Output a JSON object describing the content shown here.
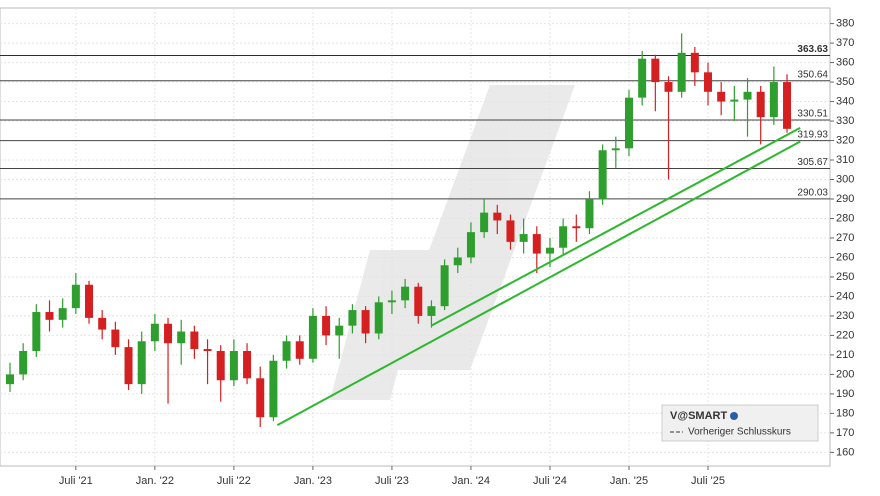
{
  "chart_data": {
    "type": "candlestick",
    "categories": [
      null,
      null,
      null,
      null,
      null,
      "Juli '21",
      null,
      null,
      null,
      null,
      null,
      "Jan. '22",
      null,
      null,
      null,
      null,
      null,
      "Juli '22",
      null,
      null,
      null,
      null,
      null,
      "Jan. '23",
      null,
      null,
      null,
      null,
      null,
      "Juli '23",
      null,
      null,
      null,
      null,
      null,
      "Jan. '24",
      null,
      null,
      null,
      null,
      null,
      "Juli '24",
      null,
      null,
      null,
      null,
      null,
      "Jan. '25",
      null,
      null,
      null,
      null,
      null,
      "Juli '25",
      null,
      null,
      null,
      null,
      null,
      null
    ],
    "open": [
      195,
      200,
      212,
      232,
      228,
      234,
      246,
      229,
      223,
      214,
      195,
      217,
      226,
      216,
      222,
      213,
      212,
      197,
      212,
      198,
      178,
      207,
      217,
      208,
      230,
      220,
      225,
      233,
      221,
      237,
      238,
      245,
      230,
      235,
      256,
      260,
      273,
      283,
      279,
      268,
      272,
      262,
      265,
      276,
      275,
      290,
      315,
      316,
      342,
      362,
      350,
      345,
      365,
      355,
      345,
      340,
      341,
      345,
      332,
      350
    ],
    "high": [
      206,
      216,
      236,
      238,
      239,
      252,
      248,
      233,
      227,
      218,
      222,
      231,
      229,
      228,
      225,
      218,
      215,
      218,
      216,
      204,
      210,
      220,
      220,
      234,
      235,
      229,
      236,
      235,
      240,
      243,
      249,
      247,
      238,
      259,
      265,
      278,
      290,
      287,
      282,
      280,
      276,
      270,
      280,
      282,
      294,
      318,
      322,
      346,
      366,
      364,
      353,
      375,
      368,
      360,
      350,
      348,
      352,
      348,
      358,
      354
    ],
    "low": [
      191,
      197,
      209,
      222,
      224,
      231,
      226,
      218,
      210,
      192,
      190,
      212,
      185,
      205,
      208,
      195,
      186,
      194,
      195,
      173,
      176,
      203,
      205,
      206,
      215,
      208,
      221,
      216,
      218,
      231,
      234,
      226,
      224,
      233,
      252,
      257,
      270,
      272,
      264,
      262,
      252,
      255,
      261,
      268,
      272,
      287,
      306,
      312,
      338,
      335,
      300,
      342,
      348,
      338,
      333,
      330,
      322,
      318,
      328,
      324
    ],
    "close": [
      200,
      212,
      232,
      228,
      234,
      246,
      229,
      223,
      214,
      195,
      217,
      226,
      216,
      222,
      213,
      212,
      197,
      212,
      198,
      178,
      207,
      217,
      208,
      230,
      220,
      225,
      233,
      221,
      237,
      238,
      245,
      230,
      235,
      256,
      260,
      273,
      283,
      279,
      268,
      272,
      262,
      265,
      276,
      275,
      290,
      315,
      316,
      342,
      362,
      350,
      345,
      365,
      355,
      345,
      340,
      341,
      345,
      332,
      350,
      326
    ],
    "up_color": "#2e9e2e",
    "down_color": "#d42020",
    "ylim": [
      153,
      388
    ],
    "yticks": [
      160,
      170,
      180,
      190,
      200,
      210,
      220,
      230,
      240,
      250,
      260,
      270,
      280,
      290,
      300,
      310,
      320,
      330,
      340,
      350,
      360,
      370,
      380
    ],
    "grid": true,
    "levels": [
      363.63,
      350.64,
      330.51,
      319.93,
      305.67,
      290.03
    ],
    "level_colors": [
      "#1a2a6e",
      "#444444",
      "#444444",
      "#444444",
      "#444444",
      "#444444"
    ],
    "trendlines": [
      {
        "start": [
          20.3,
          174
        ],
        "end": [
          60,
          319.5
        ]
      },
      {
        "start": [
          32,
          225
        ],
        "end": [
          60,
          326.5
        ]
      }
    ],
    "trendline_color": "#2db82d",
    "legend": {
      "title": "V@SMART",
      "entry": "Vorheriger Schlusskurs"
    }
  }
}
